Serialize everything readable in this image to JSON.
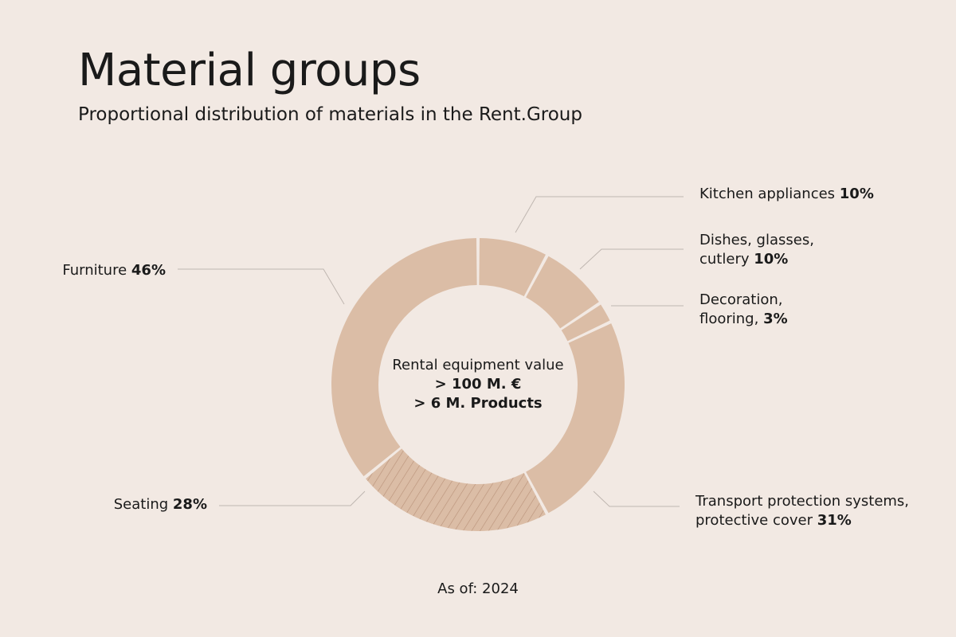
{
  "header": {
    "title": "Material groups",
    "subtitle": "Proportional distribution of materials in the Rent.Group"
  },
  "center": {
    "line1": "Rental equipment value",
    "line2": "> 100 M. €",
    "line3": "> 6 M. Products"
  },
  "footer": {
    "as_of": "As of: 2024"
  },
  "colors": {
    "background": "#f2e9e3",
    "segment_fill": "#dbbda6",
    "hatch_stroke": "#b89178",
    "leader_line": "#bfb6b0"
  },
  "chart_data": {
    "type": "pie",
    "title": "Material groups",
    "categories": [
      "Kitchen appliances",
      "Dishes, glasses, cutlery",
      "Decoration, flooring,",
      "Transport protection systems, protective cover",
      "Seating",
      "Furniture"
    ],
    "values": [
      10,
      10,
      3,
      31,
      28,
      46
    ],
    "slices": [
      {
        "label_lines": [
          "Kitchen appliances"
        ],
        "value_text": "10%",
        "value": 10,
        "pattern": "solid"
      },
      {
        "label_lines": [
          "Dishes, glasses,",
          "cutlery"
        ],
        "value_text": "10%",
        "value": 10,
        "pattern": "solid"
      },
      {
        "label_lines": [
          "Decoration,",
          "flooring,"
        ],
        "value_text": "3%",
        "value": 3,
        "pattern": "solid"
      },
      {
        "label_lines": [
          "Transport protection systems,",
          "protective cover"
        ],
        "value_text": "31%",
        "value": 31,
        "pattern": "solid"
      },
      {
        "label_lines": [
          "Seating"
        ],
        "value_text": "28%",
        "value": 28,
        "pattern": "hatched"
      },
      {
        "label_lines": [
          "Furniture"
        ],
        "value_text": "46%",
        "value": 46,
        "pattern": "solid"
      }
    ],
    "donut": true,
    "legend": "leader-line labels"
  }
}
